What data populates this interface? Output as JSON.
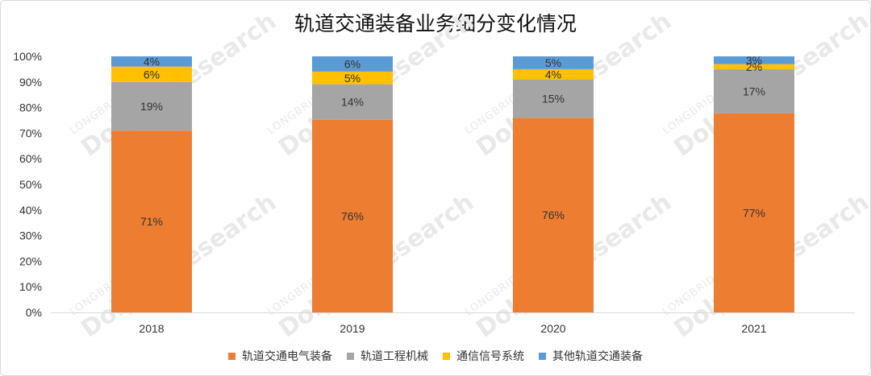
{
  "chart_data": {
    "type": "bar",
    "stacked": true,
    "normalized": true,
    "title": "轨道交通装备业务细分变化情况",
    "categories": [
      "2018",
      "2019",
      "2020",
      "2021"
    ],
    "series": [
      {
        "name": "轨道交通电气装备",
        "color": "#ED7D31",
        "values": [
          71,
          76,
          76,
          77
        ],
        "labels": [
          "71%",
          "76%",
          "76%",
          "77%"
        ]
      },
      {
        "name": "轨道工程机械",
        "color": "#A5A5A5",
        "values": [
          19,
          14,
          15,
          17
        ],
        "labels": [
          "19%",
          "14%",
          "15%",
          "17%"
        ]
      },
      {
        "name": "通信信号系统",
        "color": "#FFC000",
        "values": [
          6,
          5,
          4,
          2
        ],
        "labels": [
          "6%",
          "5%",
          "4%",
          "2%"
        ]
      },
      {
        "name": "其他轨道交通装备",
        "color": "#5B9BD5",
        "values": [
          4,
          6,
          5,
          3
        ],
        "labels": [
          "4%",
          "6%",
          "5%",
          "3%"
        ]
      }
    ],
    "y_ticks": [
      "0%",
      "10%",
      "20%",
      "30%",
      "40%",
      "50%",
      "60%",
      "70%",
      "80%",
      "90%",
      "100%"
    ],
    "ylim": [
      0,
      100
    ],
    "grid": false,
    "legend_position": "bottom"
  },
  "watermark": {
    "line1": "LONGBRIDGE",
    "line2": "DolphinResearch"
  }
}
